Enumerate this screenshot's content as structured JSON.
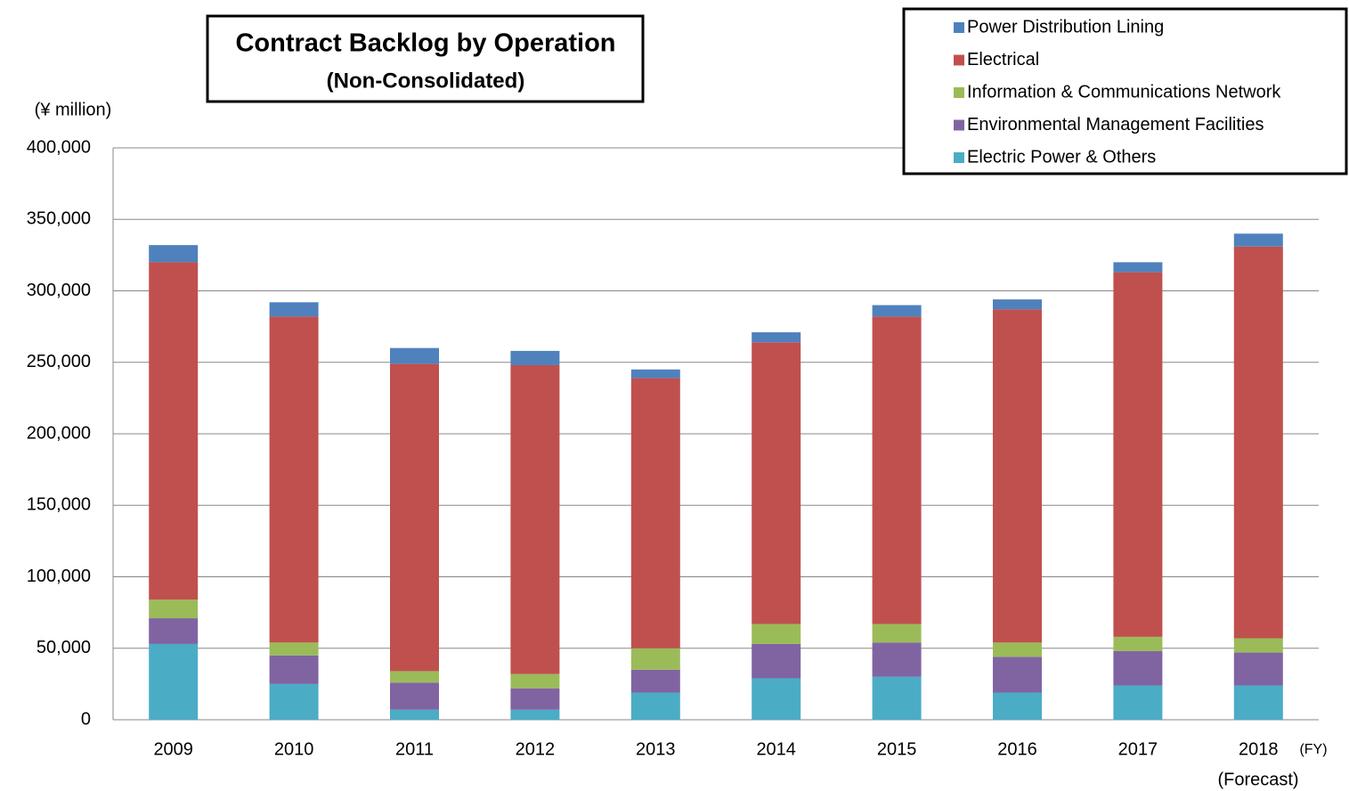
{
  "chart_data": {
    "type": "stacked_bar",
    "title": "Contract Backlog by Operation",
    "subtitle": "(Non-Consolidated)",
    "y_axis_label": "(¥ million)",
    "x_axis_label": "(FY)",
    "annotation": "(Forecast)",
    "categories": [
      "2009",
      "2010",
      "2011",
      "2012",
      "2013",
      "2014",
      "2015",
      "2016",
      "2017",
      "2018"
    ],
    "series": [
      {
        "name": "Electric Power & Others",
        "color": "#4bacc6",
        "values": [
          53000,
          25000,
          7000,
          7000,
          19000,
          29000,
          30000,
          19000,
          24000,
          24000
        ]
      },
      {
        "name": "Environmental Management Facilities",
        "color": "#8064a2",
        "values": [
          18000,
          20000,
          19000,
          15000,
          16000,
          24000,
          24000,
          25000,
          24000,
          23000
        ]
      },
      {
        "name": "Information & Communications Network",
        "color": "#9bbb59",
        "values": [
          13000,
          9000,
          8000,
          10000,
          15000,
          14000,
          13000,
          10000,
          10000,
          10000
        ]
      },
      {
        "name": "Electrical",
        "color": "#c0504d",
        "values": [
          236000,
          228000,
          215000,
          216000,
          189000,
          197000,
          215000,
          233000,
          255000,
          274000
        ]
      },
      {
        "name": "Power Distribution Lining",
        "color": "#4f81bd",
        "values": [
          12000,
          10000,
          11000,
          10000,
          6000,
          7000,
          8000,
          7000,
          7000,
          9000
        ]
      }
    ],
    "ylim": [
      0,
      400000
    ],
    "yticks": [
      0,
      {
        "value": 50000,
        "label": "50,000"
      },
      {
        "value": 100000,
        "label": "100,000"
      },
      {
        "value": 150000,
        "label": "150,000"
      },
      {
        "value": 200000,
        "label": "200,000"
      },
      {
        "value": 250000,
        "label": "250,000"
      },
      {
        "value": 300000,
        "label": "300,000"
      },
      {
        "value": 350000,
        "label": "350,000"
      },
      {
        "value": 400000,
        "label": "400,000"
      }
    ],
    "grid": true,
    "legend": "top-right"
  }
}
